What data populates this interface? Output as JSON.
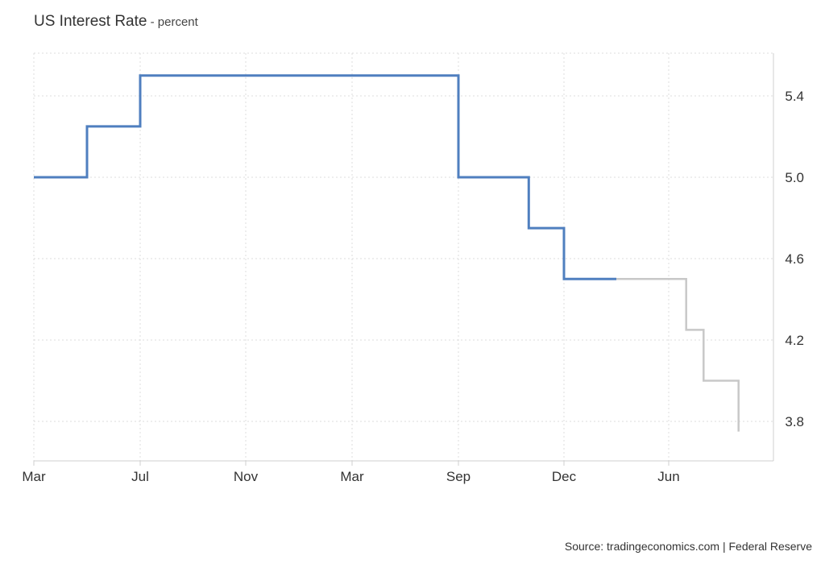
{
  "header": {
    "title": "US Interest Rate",
    "title_suffix": " - percent"
  },
  "footer": {
    "source": "Source: tradingeconomics.com | Federal Reserve"
  },
  "chart_data": {
    "type": "line",
    "step": true,
    "title": "US Interest Rate",
    "ylabel": "percent",
    "x_tick_labels": [
      "Mar",
      "Jul",
      "Nov",
      "Mar",
      "Sep",
      "Dec",
      "Jun"
    ],
    "y_ticks": [
      3.8,
      4.2,
      4.6,
      5.0,
      5.4
    ],
    "ylim": [
      3.6,
      5.6
    ],
    "y_axis_side": "right",
    "grid": true,
    "series": [
      {
        "color": "#4f7fbf",
        "points": [
          {
            "x": "2023-03",
            "y": 5.0
          },
          {
            "x": "2023-05",
            "y": 5.25
          },
          {
            "x": "2023-07",
            "y": 5.5
          },
          {
            "x": "2024-09",
            "y": 5.0
          },
          {
            "x": "2024-11",
            "y": 4.75
          },
          {
            "x": "2024-12",
            "y": 4.5
          },
          {
            "x": "2025-03",
            "y": 4.5
          }
        ]
      },
      {
        "color": "#c8c8c8",
        "points": [
          {
            "x": "2025-03",
            "y": 4.5
          },
          {
            "x": "2025-06",
            "y": 4.5
          },
          {
            "x": "2025-07",
            "y": 4.25
          },
          {
            "x": "2025-08",
            "y": 4.0
          },
          {
            "x": "2025-10",
            "y": 4.0
          },
          {
            "x": "2025-10",
            "y": 3.75
          }
        ]
      }
    ]
  }
}
